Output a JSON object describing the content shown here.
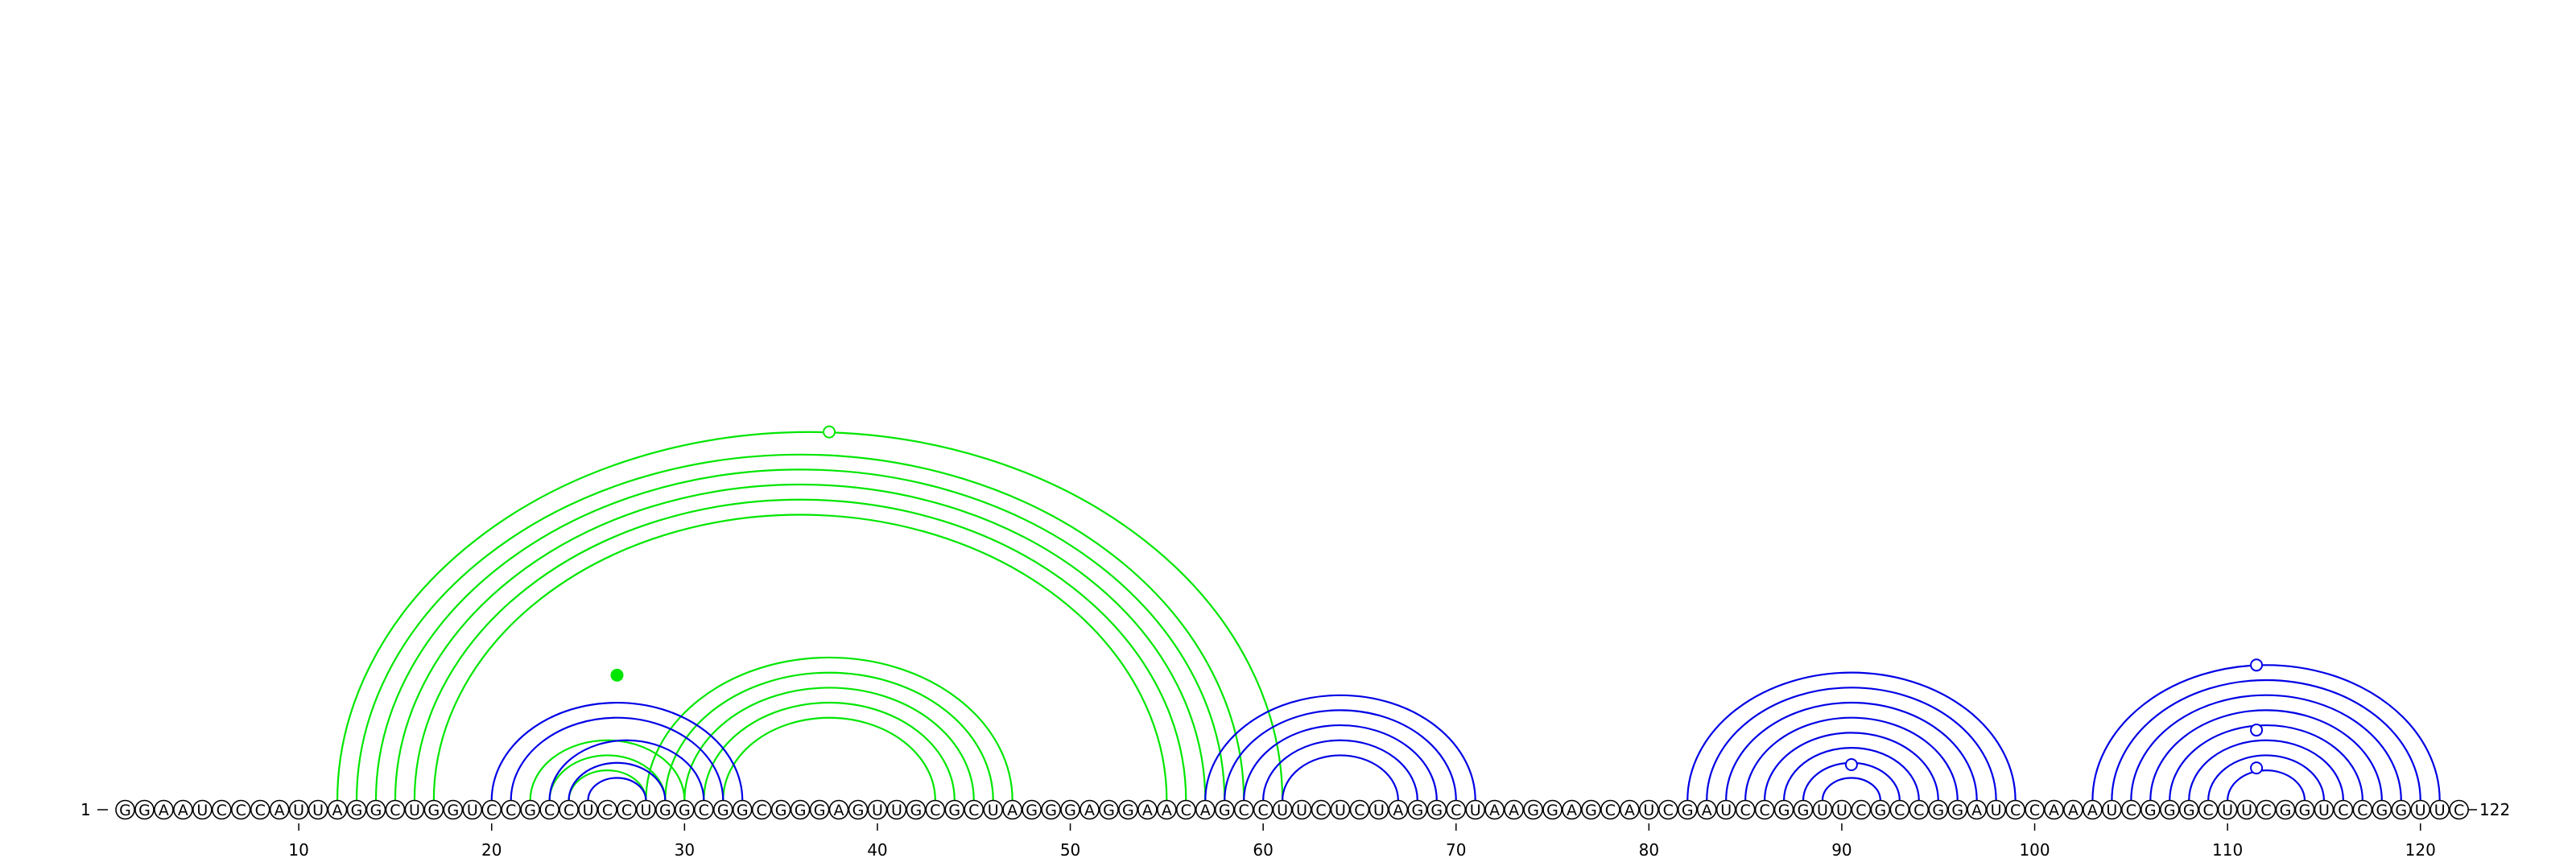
{
  "diagram": {
    "sequence": "GGAAUCCCAUUAGGCUGGUCCGCCUCCUGGCGGCGGGAGUUGCGCUAGGGAGGAACAGCCUUCUCUAGGCUAAGGAGCAUCGAUCCGGUUCGCCGGAUCCAAAUCGGGCUUCGGUCCGGUUC",
    "start_label": "1",
    "end_label": "122",
    "ticks": [
      10,
      20,
      30,
      40,
      50,
      60,
      70,
      80,
      90,
      100,
      110,
      120
    ],
    "colors": {
      "blue": "#0000e6",
      "green": "#00e600"
    },
    "helices": [
      {
        "color": "green",
        "pairs": [
          [
            12,
            61
          ],
          [
            13,
            59
          ],
          [
            14,
            58
          ],
          [
            15,
            57
          ],
          [
            16,
            56
          ],
          [
            17,
            55
          ]
        ]
      },
      {
        "color": "green",
        "pairs": [
          [
            28,
            47
          ],
          [
            29,
            46
          ],
          [
            30,
            45
          ],
          [
            31,
            44
          ],
          [
            32,
            43
          ]
        ]
      },
      {
        "color": "green",
        "pairs": [
          [
            22,
            30
          ],
          [
            23,
            29
          ],
          [
            24,
            28
          ]
        ]
      },
      {
        "color": "blue",
        "pairs": [
          [
            20,
            33
          ],
          [
            21,
            32
          ],
          [
            23,
            31
          ],
          [
            24,
            29
          ],
          [
            25,
            28
          ]
        ]
      },
      {
        "color": "blue",
        "pairs": [
          [
            57,
            71
          ],
          [
            58,
            70
          ],
          [
            59,
            69
          ],
          [
            60,
            68
          ],
          [
            61,
            67
          ]
        ]
      },
      {
        "color": "blue",
        "pairs": [
          [
            82,
            99
          ],
          [
            83,
            98
          ],
          [
            84,
            97
          ],
          [
            85,
            96
          ],
          [
            86,
            95
          ],
          [
            87,
            94
          ],
          [
            88,
            93
          ],
          [
            89,
            92
          ]
        ]
      },
      {
        "color": "blue",
        "pairs": [
          [
            103,
            121
          ],
          [
            104,
            120
          ],
          [
            105,
            119
          ],
          [
            106,
            118
          ],
          [
            107,
            117
          ],
          [
            108,
            116
          ],
          [
            109,
            115
          ],
          [
            110,
            114
          ]
        ]
      }
    ],
    "markers": [
      {
        "at": 26.5,
        "height_ratio": 0.34,
        "color": "green",
        "filled": true
      },
      {
        "at": 37.5,
        "height_ratio": 1.0,
        "color": "green",
        "filled": false
      },
      {
        "at": 90.5,
        "height_ratio": 0.28,
        "color": "blue",
        "filled": false
      },
      {
        "at": 111.5,
        "height_ratio": 1.0,
        "color": "blue",
        "filled": false
      },
      {
        "at": 111.5,
        "height_ratio": 0.52,
        "color": "blue",
        "filled": false
      },
      {
        "at": 111.5,
        "height_ratio": 0.24,
        "color": "blue",
        "filled": false
      }
    ]
  }
}
